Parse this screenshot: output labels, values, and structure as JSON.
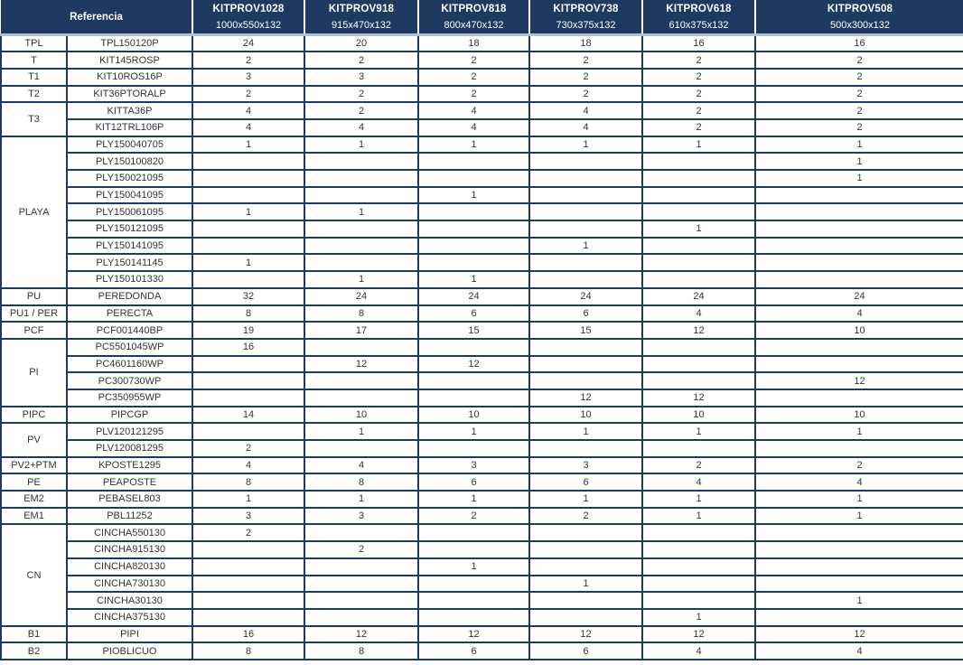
{
  "table": {
    "referencia_label": "Referencia",
    "columns": [
      {
        "model": "KITPROV1028",
        "size": "1000x550x132"
      },
      {
        "model": "KITPROV918",
        "size": "915x470x132"
      },
      {
        "model": "KITPROV818",
        "size": "800x470x132"
      },
      {
        "model": "KITPROV738",
        "size": "730x375x132"
      },
      {
        "model": "KITPROV618",
        "size": "610x375x132"
      },
      {
        "model": "KITPROV508",
        "size": "500x300x132"
      }
    ],
    "groups": [
      {
        "label": "TPL",
        "rows": [
          {
            "ref": "TPL150120P",
            "values": [
              "24",
              "20",
              "18",
              "18",
              "16",
              "16"
            ]
          }
        ]
      },
      {
        "label": "T",
        "rows": [
          {
            "ref": "KIT145ROSP",
            "values": [
              "2",
              "2",
              "2",
              "2",
              "2",
              "2"
            ]
          }
        ]
      },
      {
        "label": "T1",
        "rows": [
          {
            "ref": "KIT10ROS16P",
            "values": [
              "3",
              "3",
              "2",
              "2",
              "2",
              "2"
            ]
          }
        ]
      },
      {
        "label": "T2",
        "rows": [
          {
            "ref": "KIT36PTORALP",
            "values": [
              "2",
              "2",
              "2",
              "2",
              "2",
              "2"
            ]
          }
        ]
      },
      {
        "label": "T3",
        "rows": [
          {
            "ref": "KITTA36P",
            "values": [
              "4",
              "2",
              "4",
              "4",
              "2",
              "2"
            ]
          },
          {
            "ref": "KIT12TRL106P",
            "values": [
              "4",
              "4",
              "4",
              "4",
              "2",
              "2"
            ]
          }
        ]
      },
      {
        "label": "PLAYA",
        "rows": [
          {
            "ref": "PLY150040705",
            "values": [
              "1",
              "1",
              "1",
              "1",
              "1",
              "1"
            ]
          },
          {
            "ref": "PLY150100820",
            "values": [
              "",
              "",
              "",
              "",
              "",
              "1"
            ]
          },
          {
            "ref": "PLY150021095",
            "values": [
              "",
              "",
              "",
              "",
              "",
              "1"
            ]
          },
          {
            "ref": "PLY150041095",
            "values": [
              "",
              "",
              "1",
              "",
              "",
              ""
            ]
          },
          {
            "ref": "PLY150061095",
            "values": [
              "1",
              "1",
              "",
              "",
              "",
              ""
            ]
          },
          {
            "ref": "PLY150121095",
            "values": [
              "",
              "",
              "",
              "",
              "1",
              ""
            ]
          },
          {
            "ref": "PLY150141095",
            "values": [
              "",
              "",
              "",
              "1",
              "",
              ""
            ]
          },
          {
            "ref": "PLY150141145",
            "values": [
              "1",
              "",
              "",
              "",
              "",
              ""
            ]
          },
          {
            "ref": "PLY150101330",
            "values": [
              "",
              "1",
              "1",
              "",
              "",
              ""
            ]
          }
        ]
      },
      {
        "label": "PU",
        "rows": [
          {
            "ref": "PEREDONDA",
            "values": [
              "32",
              "24",
              "24",
              "24",
              "24",
              "24"
            ]
          }
        ]
      },
      {
        "label": "PU1 / PER",
        "rows": [
          {
            "ref": "PERECTA",
            "values": [
              "8",
              "8",
              "6",
              "6",
              "4",
              "4"
            ]
          }
        ]
      },
      {
        "label": "PCF",
        "rows": [
          {
            "ref": "PCF001440BP",
            "values": [
              "19",
              "17",
              "15",
              "15",
              "12",
              "10"
            ]
          }
        ]
      },
      {
        "label": "PI",
        "rows": [
          {
            "ref": "PC5501045WP",
            "values": [
              "16",
              "",
              "",
              "",
              "",
              ""
            ]
          },
          {
            "ref": "PC4601160WP",
            "values": [
              "",
              "12",
              "12",
              "",
              "",
              ""
            ]
          },
          {
            "ref": "PC300730WP",
            "values": [
              "",
              "",
              "",
              "",
              "",
              "12"
            ]
          },
          {
            "ref": "PC350955WP",
            "values": [
              "",
              "",
              "",
              "12",
              "12",
              ""
            ]
          }
        ]
      },
      {
        "label": "PIPC",
        "rows": [
          {
            "ref": "PIPCGP",
            "values": [
              "14",
              "10",
              "10",
              "10",
              "10",
              "10"
            ]
          }
        ]
      },
      {
        "label": "PV",
        "rows": [
          {
            "ref": "PLV120121295",
            "values": [
              "",
              "1",
              "1",
              "1",
              "1",
              "1"
            ]
          },
          {
            "ref": "PLV120081295",
            "values": [
              "2",
              "",
              "",
              "",
              "",
              ""
            ]
          }
        ]
      },
      {
        "label": "PV2+PTM",
        "rows": [
          {
            "ref": "KPOSTE1295",
            "values": [
              "4",
              "4",
              "3",
              "3",
              "2",
              "2"
            ]
          }
        ]
      },
      {
        "label": "PE",
        "rows": [
          {
            "ref": "PEAPOSTE",
            "values": [
              "8",
              "8",
              "6",
              "6",
              "4",
              "4"
            ]
          }
        ]
      },
      {
        "label": "EM2",
        "rows": [
          {
            "ref": "PEBASEL803",
            "values": [
              "1",
              "1",
              "1",
              "1",
              "1",
              "1"
            ]
          }
        ]
      },
      {
        "label": "EM1",
        "rows": [
          {
            "ref": "PBL11252",
            "values": [
              "3",
              "3",
              "2",
              "2",
              "1",
              "1"
            ]
          }
        ]
      },
      {
        "label": "CN",
        "rows": [
          {
            "ref": "CINCHA550130",
            "values": [
              "2",
              "",
              "",
              "",
              "",
              ""
            ]
          },
          {
            "ref": "CINCHA915130",
            "values": [
              "",
              "2",
              "",
              "",
              "",
              ""
            ]
          },
          {
            "ref": "CINCHA820130",
            "values": [
              "",
              "",
              "1",
              "",
              "",
              ""
            ]
          },
          {
            "ref": "CINCHA730130",
            "values": [
              "",
              "",
              "",
              "1",
              "",
              ""
            ]
          },
          {
            "ref": "CINCHA30130",
            "values": [
              "",
              "",
              "",
              "",
              "",
              "1"
            ]
          },
          {
            "ref": "CINCHA375130",
            "values": [
              "",
              "",
              "",
              "",
              "1",
              ""
            ]
          }
        ]
      },
      {
        "label": "B1",
        "rows": [
          {
            "ref": "PIPI",
            "values": [
              "16",
              "12",
              "12",
              "12",
              "12",
              "12"
            ]
          }
        ]
      },
      {
        "label": "B2",
        "rows": [
          {
            "ref": "PIOBLICUO",
            "values": [
              "8",
              "8",
              "6",
              "6",
              "4",
              "4"
            ]
          }
        ]
      }
    ]
  },
  "colors": {
    "header_bg": "#1f3a60",
    "header_text": "#ffffff",
    "header_divider": "#ffffff",
    "header_underline": "#aebfd9",
    "border": "#1f3a60",
    "cell_bg": "#ffffff",
    "text": "#333333"
  }
}
